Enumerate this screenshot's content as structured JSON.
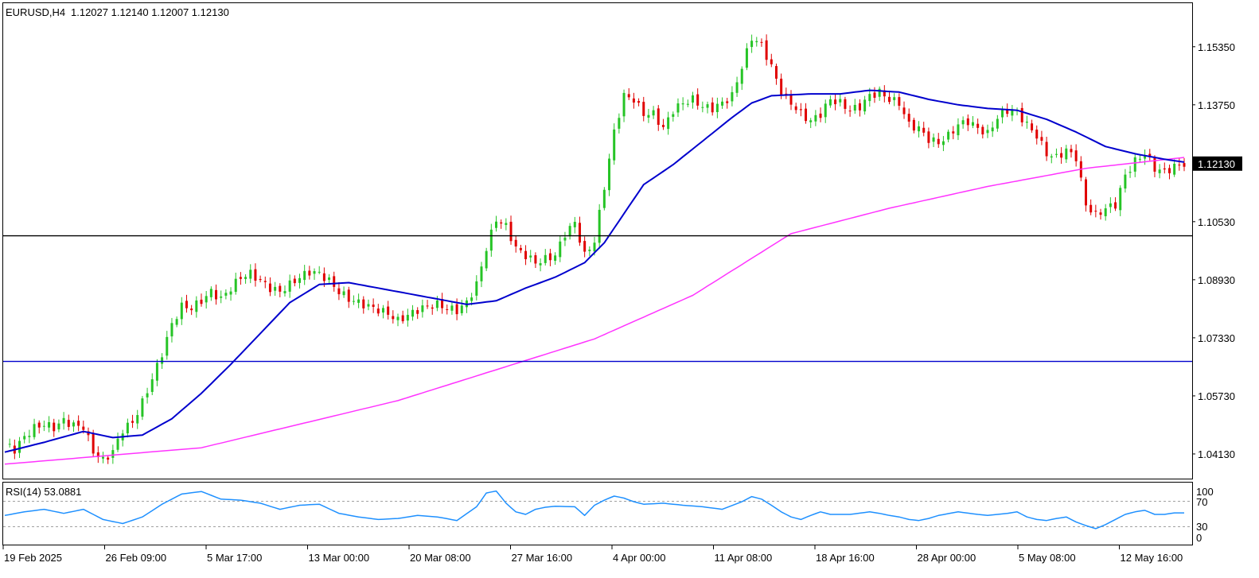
{
  "main_chart": {
    "header": {
      "symbol": "EURUSD,H4",
      "ohlc": "1.12027 1.12140 1.12007 1.12130"
    },
    "price_axis_labels": [
      "1.15350",
      "1.13750",
      "1.12130",
      "1.10530",
      "1.08930",
      "1.07330",
      "1.05730",
      "1.04130"
    ],
    "current_price": "1.12130",
    "horizontal_lines": [
      {
        "price": 1.1014,
        "color": "#000000"
      },
      {
        "price": 1.0668,
        "color": "#0000cd"
      }
    ]
  },
  "rsi_panel": {
    "label": "RSI(14) 53.0881",
    "levels": [
      "100",
      "70",
      "30",
      "0"
    ]
  },
  "time_axis_labels": [
    "19 Feb 2025",
    "26 Feb 09:00",
    "5 Mar 17:00",
    "13 Mar 00:00",
    "20 Mar 08:00",
    "27 Mar 16:00",
    "4 Apr 00:00",
    "11 Apr 08:00",
    "18 Apr 16:00",
    "28 Apr 00:00",
    "5 May 08:00",
    "12 May 16:00"
  ],
  "colors": {
    "bull": "#26c426",
    "bear": "#e00000",
    "ma_fast": "#0000cd",
    "ma_slow": "#ff33ff",
    "rsi": "#1e90ff",
    "hline_support": "#0000cd",
    "hline_resist": "#000000"
  },
  "chart_data": [
    {
      "type": "candlestick",
      "ylim": [
        1.0345,
        1.1655
      ],
      "price_ticks": [
        1.1535,
        1.1375,
        1.1213,
        1.1053,
        1.0893,
        1.0733,
        1.0573,
        1.0413
      ],
      "close_path": [
        [
          0,
          1.044
        ],
        [
          2,
          1.0425
        ],
        [
          4,
          1.046
        ],
        [
          6,
          1.0485
        ],
        [
          8,
          1.0495
        ],
        [
          10,
          1.0485
        ],
        [
          12,
          1.0505
        ],
        [
          14,
          1.0492
        ],
        [
          16,
          1.0488
        ],
        [
          18,
          1.042
        ],
        [
          20,
          1.0395
        ],
        [
          22,
          1.042
        ],
        [
          24,
          1.048
        ],
        [
          26,
          1.05
        ],
        [
          28,
          1.0555
        ],
        [
          30,
          1.062
        ],
        [
          32,
          1.069
        ],
        [
          34,
          1.077
        ],
        [
          36,
          1.082
        ],
        [
          38,
          1.0815
        ],
        [
          40,
          1.0835
        ],
        [
          42,
          1.086
        ],
        [
          44,
          1.084
        ],
        [
          46,
          1.087
        ],
        [
          48,
          1.09
        ],
        [
          50,
          1.091
        ],
        [
          52,
          1.089
        ],
        [
          54,
          1.087
        ],
        [
          56,
          1.086
        ],
        [
          58,
          1.088
        ],
        [
          60,
          1.09
        ],
        [
          62,
          1.0915
        ],
        [
          64,
          1.091
        ],
        [
          66,
          1.089
        ],
        [
          68,
          1.086
        ],
        [
          70,
          1.084
        ],
        [
          72,
          1.083
        ],
        [
          74,
          1.082
        ],
        [
          76,
          1.081
        ],
        [
          78,
          1.08
        ],
        [
          80,
          1.078
        ],
        [
          82,
          1.0795
        ],
        [
          84,
          1.081
        ],
        [
          86,
          1.082
        ],
        [
          88,
          1.0825
        ],
        [
          90,
          1.0815
        ],
        [
          92,
          1.0808
        ],
        [
          94,
          1.083
        ],
        [
          96,
          1.088
        ],
        [
          98,
          1.098
        ],
        [
          100,
          1.106
        ],
        [
          102,
          1.104
        ],
        [
          104,
          1.098
        ],
        [
          106,
          1.096
        ],
        [
          108,
          1.094
        ],
        [
          110,
          1.095
        ],
        [
          112,
          1.096
        ],
        [
          114,
          1.102
        ],
        [
          116,
          1.105
        ],
        [
          118,
          1.096
        ],
        [
          120,
          1.1
        ],
        [
          122,
          1.115
        ],
        [
          124,
          1.13
        ],
        [
          126,
          1.14
        ],
        [
          128,
          1.139
        ],
        [
          130,
          1.135
        ],
        [
          132,
          1.135
        ],
        [
          134,
          1.131
        ],
        [
          136,
          1.136
        ],
        [
          138,
          1.138
        ],
        [
          140,
          1.139
        ],
        [
          142,
          1.137
        ],
        [
          144,
          1.1365
        ],
        [
          146,
          1.138
        ],
        [
          148,
          1.14
        ],
        [
          150,
          1.148
        ],
        [
          152,
          1.156
        ],
        [
          154,
          1.154
        ],
        [
          156,
          1.148
        ],
        [
          158,
          1.141
        ],
        [
          160,
          1.138
        ],
        [
          162,
          1.135
        ],
        [
          164,
          1.133
        ],
        [
          166,
          1.135
        ],
        [
          168,
          1.139
        ],
        [
          170,
          1.138
        ],
        [
          172,
          1.136
        ],
        [
          174,
          1.137
        ],
        [
          176,
          1.14
        ],
        [
          178,
          1.141
        ],
        [
          180,
          1.139
        ],
        [
          182,
          1.138
        ],
        [
          184,
          1.132
        ],
        [
          186,
          1.131
        ],
        [
          188,
          1.128
        ],
        [
          190,
          1.127
        ],
        [
          192,
          1.129
        ],
        [
          194,
          1.132
        ],
        [
          196,
          1.133
        ],
        [
          198,
          1.131
        ],
        [
          200,
          1.1295
        ],
        [
          202,
          1.134
        ],
        [
          204,
          1.136
        ],
        [
          206,
          1.1355
        ],
        [
          208,
          1.132
        ],
        [
          210,
          1.129
        ],
        [
          212,
          1.124
        ],
        [
          214,
          1.123
        ],
        [
          216,
          1.125
        ],
        [
          218,
          1.123
        ],
        [
          220,
          1.11
        ],
        [
          222,
          1.107
        ],
        [
          224,
          1.109
        ],
        [
          226,
          1.11
        ],
        [
          228,
          1.118
        ],
        [
          230,
          1.122
        ],
        [
          232,
          1.124
        ],
        [
          234,
          1.12
        ],
        [
          236,
          1.119
        ],
        [
          238,
          1.1205
        ],
        [
          240,
          1.1213
        ]
      ],
      "ma_fast_path": [
        [
          0,
          1.0418
        ],
        [
          8,
          1.0445
        ],
        [
          16,
          1.0475
        ],
        [
          22,
          1.0458
        ],
        [
          28,
          1.0465
        ],
        [
          34,
          1.051
        ],
        [
          40,
          1.058
        ],
        [
          46,
          1.066
        ],
        [
          52,
          1.0745
        ],
        [
          58,
          1.083
        ],
        [
          64,
          1.088
        ],
        [
          70,
          1.0885
        ],
        [
          76,
          1.087
        ],
        [
          82,
          1.0855
        ],
        [
          88,
          1.084
        ],
        [
          94,
          1.0825
        ],
        [
          100,
          1.0835
        ],
        [
          106,
          1.087
        ],
        [
          112,
          1.09
        ],
        [
          118,
          1.094
        ],
        [
          122,
          1.0995
        ],
        [
          126,
          1.1075
        ],
        [
          130,
          1.1155
        ],
        [
          136,
          1.121
        ],
        [
          142,
          1.1275
        ],
        [
          148,
          1.134
        ],
        [
          152,
          1.138
        ],
        [
          156,
          1.14
        ],
        [
          164,
          1.1405
        ],
        [
          170,
          1.1405
        ],
        [
          176,
          1.1415
        ],
        [
          182,
          1.141
        ],
        [
          188,
          1.139
        ],
        [
          194,
          1.1375
        ],
        [
          200,
          1.1365
        ],
        [
          206,
          1.136
        ],
        [
          212,
          1.1335
        ],
        [
          218,
          1.13
        ],
        [
          224,
          1.126
        ],
        [
          230,
          1.124
        ],
        [
          236,
          1.1225
        ],
        [
          240,
          1.1217
        ]
      ],
      "ma_slow_path": [
        [
          0,
          1.0385
        ],
        [
          40,
          1.043
        ],
        [
          80,
          1.056
        ],
        [
          120,
          1.073
        ],
        [
          140,
          1.085
        ],
        [
          160,
          1.102
        ],
        [
          180,
          1.109
        ],
        [
          200,
          1.115
        ],
        [
          220,
          1.12
        ],
        [
          240,
          1.123
        ]
      ]
    },
    {
      "type": "line",
      "name": "RSI(14)",
      "ylim": [
        0,
        100
      ],
      "levels": [
        70,
        30
      ],
      "rsi_path": [
        [
          0,
          48
        ],
        [
          4,
          55
        ],
        [
          8,
          60
        ],
        [
          12,
          52
        ],
        [
          16,
          60
        ],
        [
          20,
          40
        ],
        [
          24,
          32
        ],
        [
          28,
          45
        ],
        [
          32,
          70
        ],
        [
          36,
          90
        ],
        [
          40,
          95
        ],
        [
          44,
          80
        ],
        [
          48,
          78
        ],
        [
          52,
          72
        ],
        [
          56,
          60
        ],
        [
          60,
          68
        ],
        [
          64,
          70
        ],
        [
          68,
          52
        ],
        [
          72,
          45
        ],
        [
          76,
          40
        ],
        [
          80,
          42
        ],
        [
          84,
          48
        ],
        [
          88,
          45
        ],
        [
          92,
          38
        ],
        [
          96,
          65
        ],
        [
          98,
          92
        ],
        [
          100,
          96
        ],
        [
          102,
          72
        ],
        [
          104,
          55
        ],
        [
          106,
          50
        ],
        [
          108,
          60
        ],
        [
          110,
          64
        ],
        [
          112,
          66
        ],
        [
          116,
          65
        ],
        [
          118,
          48
        ],
        [
          120,
          68
        ],
        [
          122,
          78
        ],
        [
          124,
          86
        ],
        [
          126,
          82
        ],
        [
          128,
          75
        ],
        [
          130,
          70
        ],
        [
          134,
          72
        ],
        [
          138,
          68
        ],
        [
          142,
          65
        ],
        [
          146,
          60
        ],
        [
          150,
          75
        ],
        [
          152,
          85
        ],
        [
          154,
          80
        ],
        [
          156,
          68
        ],
        [
          158,
          55
        ],
        [
          160,
          45
        ],
        [
          162,
          40
        ],
        [
          164,
          48
        ],
        [
          166,
          55
        ],
        [
          168,
          50
        ],
        [
          172,
          50
        ],
        [
          176,
          55
        ],
        [
          178,
          52
        ],
        [
          180,
          48
        ],
        [
          182,
          45
        ],
        [
          184,
          40
        ],
        [
          186,
          38
        ],
        [
          188,
          42
        ],
        [
          190,
          48
        ],
        [
          194,
          55
        ],
        [
          198,
          50
        ],
        [
          200,
          48
        ],
        [
          204,
          52
        ],
        [
          206,
          55
        ],
        [
          208,
          45
        ],
        [
          210,
          40
        ],
        [
          212,
          38
        ],
        [
          214,
          42
        ],
        [
          216,
          45
        ],
        [
          218,
          35
        ],
        [
          220,
          28
        ],
        [
          222,
          22
        ],
        [
          224,
          30
        ],
        [
          226,
          40
        ],
        [
          228,
          50
        ],
        [
          230,
          55
        ],
        [
          232,
          58
        ],
        [
          234,
          50
        ],
        [
          236,
          50
        ],
        [
          238,
          53
        ],
        [
          240,
          53
        ]
      ]
    }
  ]
}
